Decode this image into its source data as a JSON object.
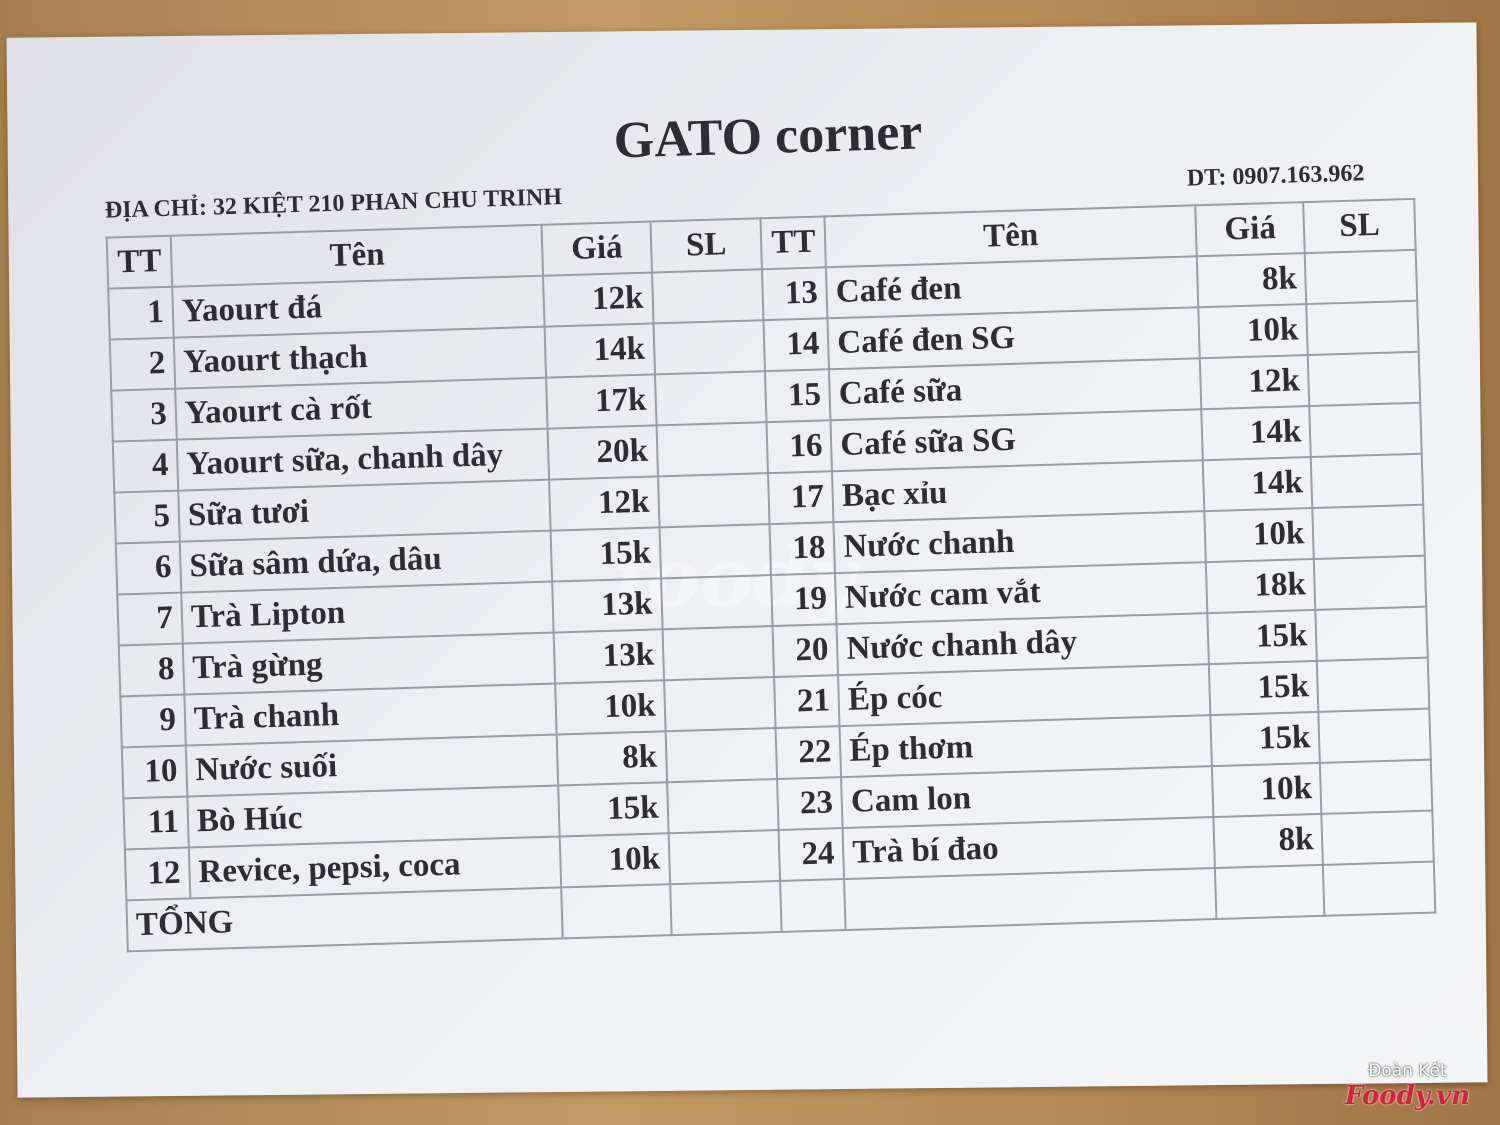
{
  "title": "GATO corner",
  "address": "ĐỊA CHỈ: 32 KIỆT 210 PHAN CHU TRINH",
  "phone": "DT: 0907.163.962",
  "headers": [
    "TT",
    "Tên",
    "Giá",
    "SL",
    "TT",
    "Tên",
    "Giá",
    "SL"
  ],
  "left_items": [
    {
      "no": "1",
      "name": "Yaourt đá",
      "price": "12k"
    },
    {
      "no": "2",
      "name": "Yaourt thạch",
      "price": "14k"
    },
    {
      "no": "3",
      "name": "Yaourt cà rốt",
      "price": "17k"
    },
    {
      "no": "4",
      "name": "Yaourt sữa, chanh dây",
      "price": "20k"
    },
    {
      "no": "5",
      "name": "Sữa tươi",
      "price": "12k"
    },
    {
      "no": "6",
      "name": "Sữa sâm dứa, dâu",
      "price": "15k"
    },
    {
      "no": "7",
      "name": "Trà Lipton",
      "price": "13k"
    },
    {
      "no": "8",
      "name": "Trà gừng",
      "price": "13k"
    },
    {
      "no": "9",
      "name": "Trà chanh",
      "price": "10k"
    },
    {
      "no": "10",
      "name": "Nước suối",
      "price": "8k"
    },
    {
      "no": "11",
      "name": "Bò Húc",
      "price": "15k"
    },
    {
      "no": "12",
      "name": "Revice, pepsi, coca",
      "price": "10k"
    }
  ],
  "right_items": [
    {
      "no": "13",
      "name": "Café đen",
      "price": "8k"
    },
    {
      "no": "14",
      "name": "Café đen SG",
      "price": "10k"
    },
    {
      "no": "15",
      "name": "Café sữa",
      "price": "12k"
    },
    {
      "no": "16",
      "name": "Café sữa SG",
      "price": "14k"
    },
    {
      "no": "17",
      "name": "Bạc xỉu",
      "price": "14k"
    },
    {
      "no": "18",
      "name": "Nước chanh",
      "price": "10k"
    },
    {
      "no": "19",
      "name": "Nước cam vắt",
      "price": "18k"
    },
    {
      "no": "20",
      "name": "Nước chanh dây",
      "price": "15k"
    },
    {
      "no": "21",
      "name": "Ép cóc",
      "price": "15k"
    },
    {
      "no": "22",
      "name": "Ép thơm",
      "price": "15k"
    },
    {
      "no": "23",
      "name": "Cam lon",
      "price": "10k"
    },
    {
      "no": "24",
      "name": "Trà bí đao",
      "price": "8k"
    }
  ],
  "total_label": "TỔNG",
  "watermark": {
    "location": "Đoàn Kết",
    "brand": "Foody.vn"
  }
}
